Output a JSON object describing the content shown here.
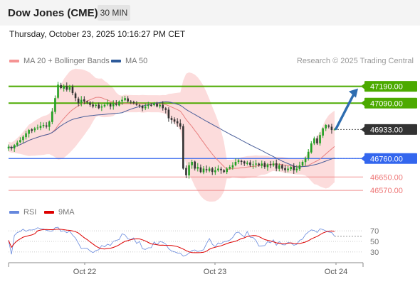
{
  "header": {
    "title": "Dow Jones (CME)",
    "interval": "30 MIN",
    "timestamp": "Thursday, October 23, 2025 10:16:27 PM CET"
  },
  "legend": {
    "ma20_label": "MA 20 + Bollinger Bands",
    "ma50_label": "MA 50",
    "credit": "Research © 2025 Trading Central"
  },
  "colors": {
    "up_candle": "#22a022",
    "down_candle": "#333333",
    "resistance": "#4caa00",
    "support": "#3366ee",
    "target": "#ee7777",
    "bollinger": "#fcd6d6",
    "ma20": "#e88080",
    "ma50": "#4a5f9a",
    "arrow": "#2e6db0",
    "rsi": "#6688dd",
    "rsi_ma": "#dd0000"
  },
  "chart_data": [
    {
      "type": "candlestick",
      "title": "Dow Jones (CME)",
      "x_ticks": [
        "Oct 22",
        "Oct 23",
        "Oct 24"
      ],
      "y_range": [
        46520,
        47290
      ],
      "levels": [
        {
          "value": 47190.0,
          "label": "47190.00",
          "kind": "resistance"
        },
        {
          "value": 47090.0,
          "label": "47090.00",
          "kind": "resistance"
        },
        {
          "value": 46933.0,
          "label": "46933.00",
          "kind": "last"
        },
        {
          "value": 46760.0,
          "label": "46760.00",
          "kind": "support"
        },
        {
          "value": 46650.0,
          "label": "46650.00",
          "kind": "target"
        },
        {
          "value": 46570.0,
          "label": "46570.00",
          "kind": "target"
        }
      ],
      "series": [
        {
          "name": "MA 20 + Bollinger Bands",
          "indicator": "ma20"
        },
        {
          "name": "MA 50",
          "indicator": "ma50"
        }
      ],
      "closes": [
        46830,
        46820,
        46840,
        46855,
        46870,
        46890,
        46910,
        46930,
        46925,
        46940,
        46945,
        46955,
        46960,
        46950,
        46980,
        47040,
        47120,
        47200,
        47180,
        47190,
        47170,
        47185,
        47150,
        47120,
        47090,
        47110,
        47100,
        47095,
        47080,
        47070,
        47080,
        47060,
        47070,
        47080,
        47090,
        47070,
        47090,
        47080,
        47100,
        47110,
        47120,
        47100,
        47095,
        47090,
        47080,
        47075,
        47060,
        47070,
        47080,
        47075,
        47090,
        47070,
        47080,
        47060,
        47050,
        47000,
        46990,
        46980,
        46970,
        46950,
        46700,
        46660,
        46720,
        46740,
        46700,
        46710,
        46680,
        46700,
        46690,
        46700,
        46680,
        46690,
        46700,
        46690,
        46680,
        46700,
        46710,
        46720,
        46740,
        46750,
        46740,
        46730,
        46735,
        46720,
        46725,
        46730,
        46720,
        46730,
        46710,
        46725,
        46720,
        46730,
        46700,
        46720,
        46700,
        46690,
        46700,
        46710,
        46690,
        46700,
        46720,
        46740,
        46760,
        46800,
        46850,
        46880,
        46850,
        46900,
        46940,
        46960,
        46950,
        46930,
        46933
      ],
      "rsi": {
        "name": "RSI",
        "ma_name": "9MA",
        "ticks": [
          70,
          50,
          30
        ],
        "range": [
          15,
          85
        ]
      }
    }
  ]
}
